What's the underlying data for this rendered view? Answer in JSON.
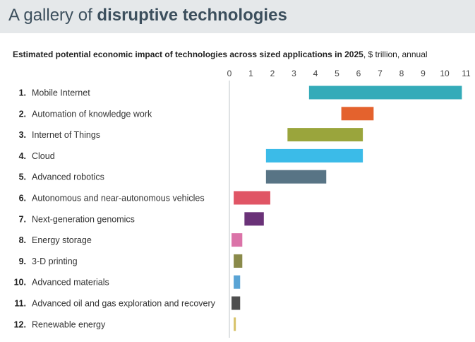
{
  "header": {
    "title_prefix": "A gallery of ",
    "title_bold": "disruptive technologies",
    "background": "#e5e8ea",
    "color": "#3c4f5d"
  },
  "chart_data": {
    "type": "bar",
    "subtype": "floating-range",
    "title_bold": "Estimated potential economic impact of technologies across sized applications in 2025",
    "title_unit": ", $ trillion, annual",
    "xlabel": "$ trillion, annual",
    "xlim": [
      0,
      11
    ],
    "xticks": [
      0,
      1,
      2,
      3,
      4,
      5,
      6,
      7,
      8,
      9,
      10,
      11
    ],
    "axis_position": "top",
    "categories": [
      {
        "rank": "1.",
        "label": "Mobile Internet",
        "low": 3.7,
        "high": 10.8,
        "color": "#34abb9"
      },
      {
        "rank": "2.",
        "label": "Automation of knowledge work",
        "low": 5.2,
        "high": 6.7,
        "color": "#e4622d"
      },
      {
        "rank": "3.",
        "label": "Internet of Things",
        "low": 2.7,
        "high": 6.2,
        "color": "#9aa53c"
      },
      {
        "rank": "4.",
        "label": "Cloud",
        "low": 1.7,
        "high": 6.2,
        "color": "#3bbbe8"
      },
      {
        "rank": "5.",
        "label": "Advanced robotics",
        "low": 1.7,
        "high": 4.5,
        "color": "#587485"
      },
      {
        "rank": "6.",
        "label": "Autonomous and near-autonomous vehicles",
        "low": 0.2,
        "high": 1.9,
        "color": "#e05565"
      },
      {
        "rank": "7.",
        "label": "Next-generation genomics",
        "low": 0.7,
        "high": 1.6,
        "color": "#6a3278"
      },
      {
        "rank": "8.",
        "label": "Energy storage",
        "low": 0.1,
        "high": 0.6,
        "color": "#db73a8"
      },
      {
        "rank": "9.",
        "label": "3-D printing",
        "low": 0.2,
        "high": 0.6,
        "color": "#8a8a4a"
      },
      {
        "rank": "10.",
        "label": "Advanced materials",
        "low": 0.2,
        "high": 0.5,
        "color": "#5aa4d5"
      },
      {
        "rank": "11.",
        "label": "Advanced oil and gas exploration and recovery",
        "low": 0.1,
        "high": 0.5,
        "color": "#4f4f4f"
      },
      {
        "rank": "12.",
        "label": "Renewable energy",
        "low": 0.2,
        "high": 0.3,
        "color": "#d7c36a"
      }
    ],
    "grid": false
  }
}
